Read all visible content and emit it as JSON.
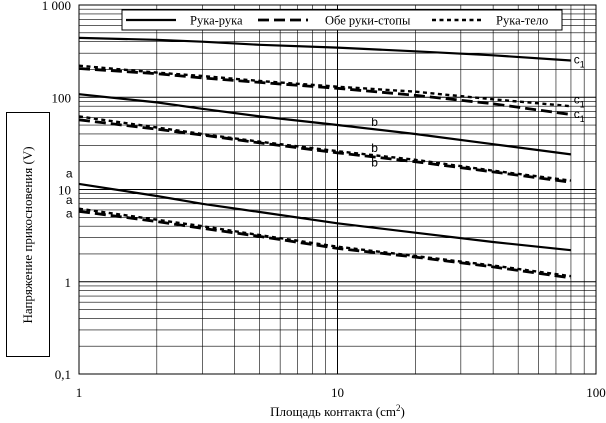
{
  "chart_data": {
    "type": "line",
    "x_scale": "log",
    "y_scale": "log",
    "xlim": [
      1,
      100
    ],
    "ylim": [
      0.1,
      1000
    ],
    "x_tick_labels": [
      "1",
      "10",
      "100"
    ],
    "y_tick_labels": [
      "0,1",
      "1",
      "10",
      "100",
      "1 000"
    ],
    "xlabel": "Площадь контакта (cm",
    "xlabel_sup": "2",
    "xlabel_close": ")",
    "ylabel": "Напряжение прикосновения (V)",
    "grid": "on",
    "legend_position": "top",
    "legend": [
      {
        "label": "Рука-рука",
        "style": "solid"
      },
      {
        "label": "Обе руки-стопы",
        "style": "dashed"
      },
      {
        "label": "Рука-тело",
        "style": "dotted"
      }
    ],
    "series": [
      {
        "curve": "c",
        "style": "solid",
        "x": [
          1,
          2,
          3,
          5,
          10,
          20,
          40,
          80
        ],
        "y": [
          440,
          420,
          400,
          370,
          345,
          315,
          285,
          250
        ]
      },
      {
        "curve": "c",
        "style": "dotted",
        "x": [
          1,
          2,
          3,
          5,
          10,
          20,
          40,
          80
        ],
        "y": [
          220,
          185,
          170,
          150,
          130,
          115,
          95,
          80
        ]
      },
      {
        "curve": "c",
        "style": "dashed",
        "x": [
          1,
          2,
          3,
          5,
          10,
          20,
          40,
          80
        ],
        "y": [
          205,
          180,
          162,
          145,
          125,
          105,
          85,
          65
        ]
      },
      {
        "curve": "b",
        "style": "solid",
        "x": [
          1,
          2,
          3,
          5,
          10,
          20,
          40,
          80
        ],
        "y": [
          108,
          88,
          75,
          62,
          50,
          40,
          31,
          24
        ]
      },
      {
        "curve": "b",
        "style": "dotted",
        "x": [
          1,
          2,
          3,
          5,
          10,
          20,
          40,
          80
        ],
        "y": [
          62,
          47,
          40,
          33,
          26,
          21,
          16,
          12.5
        ]
      },
      {
        "curve": "b",
        "style": "dashed",
        "x": [
          1,
          2,
          3,
          5,
          10,
          20,
          40,
          80
        ],
        "y": [
          57,
          45,
          39,
          32,
          25,
          20,
          15.5,
          12
        ]
      },
      {
        "curve": "a",
        "style": "solid",
        "x": [
          1,
          2,
          3,
          5,
          10,
          20,
          40,
          80
        ],
        "y": [
          11.5,
          8.5,
          7,
          5.7,
          4.3,
          3.4,
          2.7,
          2.2
        ]
      },
      {
        "curve": "a",
        "style": "dotted",
        "x": [
          1,
          2,
          3,
          5,
          10,
          20,
          40,
          80
        ],
        "y": [
          6.2,
          4.7,
          4,
          3.2,
          2.4,
          1.9,
          1.5,
          1.15
        ]
      },
      {
        "curve": "a",
        "style": "dashed",
        "x": [
          1,
          2,
          3,
          5,
          10,
          20,
          40,
          80
        ],
        "y": [
          5.8,
          4.5,
          3.8,
          3.1,
          2.3,
          1.85,
          1.45,
          1.1
        ]
      }
    ],
    "curve_labels": [
      {
        "text": "c",
        "sub": "1",
        "x": 82,
        "y": 255
      },
      {
        "text": "c",
        "sub": "1",
        "x": 82,
        "y": 95
      },
      {
        "text": "c",
        "sub": "1",
        "x": 82,
        "y": 66
      },
      {
        "text": "b",
        "sub": "",
        "x": 13.5,
        "y": 54
      },
      {
        "text": "b",
        "sub": "",
        "x": 13.5,
        "y": 28
      },
      {
        "text": "b",
        "sub": "",
        "x": 13.5,
        "y": 19.5
      },
      {
        "text": "a",
        "sub": "",
        "x": 0.89,
        "y": 15
      },
      {
        "text": "a",
        "sub": "",
        "x": 0.89,
        "y": 7.7
      },
      {
        "text": "a",
        "sub": "",
        "x": 0.89,
        "y": 5.5
      }
    ]
  }
}
